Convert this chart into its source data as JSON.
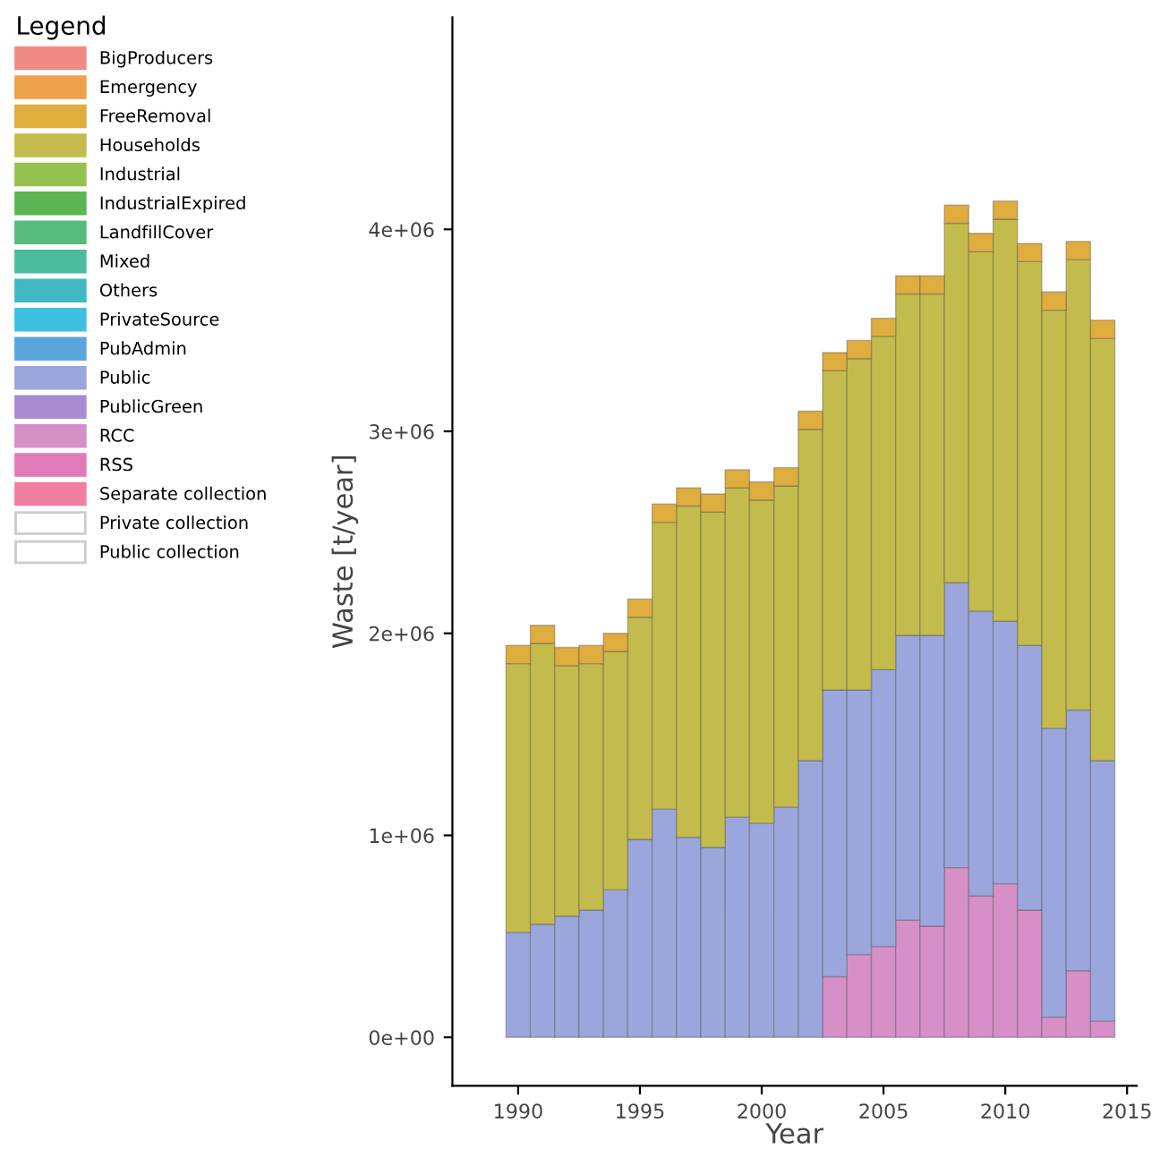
{
  "chart_data": {
    "type": "bar",
    "stacked": true,
    "xlabel": "Year",
    "ylabel": "Waste [t/year]",
    "legend_title": "Legend",
    "legend": "left",
    "grid": false,
    "x": [
      1990,
      1991,
      1992,
      1993,
      1994,
      1995,
      1996,
      1997,
      1998,
      1999,
      2000,
      2001,
      2002,
      2003,
      2004,
      2005,
      2006,
      2007,
      2008,
      2009,
      2010,
      2011,
      2012,
      2013,
      2014
    ],
    "xlim": [
      1987.3,
      2015.4
    ],
    "xticks": [
      1990,
      1995,
      2000,
      2005,
      2010,
      2015
    ],
    "ylim": [
      -240000,
      5050000
    ],
    "yticks": [
      {
        "value": 0,
        "label": "0e+00"
      },
      {
        "value": 1000000,
        "label": "1e+06"
      },
      {
        "value": 2000000,
        "label": "2e+06"
      },
      {
        "value": 3000000,
        "label": "3e+06"
      },
      {
        "value": 4000000,
        "label": "4e+06"
      }
    ],
    "series": [
      {
        "name": "RCC",
        "color": "#d78fc8",
        "values": [
          null,
          null,
          null,
          null,
          null,
          null,
          null,
          null,
          null,
          null,
          null,
          null,
          null,
          300000,
          410000,
          450000,
          580000,
          550000,
          840000,
          700000,
          760000,
          630000,
          100000,
          330000,
          80000
        ]
      },
      {
        "name": "Public",
        "color": "#9ba6dc",
        "values": [
          520000,
          560000,
          600000,
          630000,
          730000,
          980000,
          1130000,
          990000,
          940000,
          1090000,
          1060000,
          1140000,
          1370000,
          1420000,
          1310000,
          1370000,
          1410000,
          1440000,
          1410000,
          1410000,
          1300000,
          1310000,
          1430000,
          1290000,
          1290000
        ]
      },
      {
        "name": "Households",
        "color": "#c3bb4c",
        "values": [
          1330000,
          1390000,
          1240000,
          1220000,
          1180000,
          1100000,
          1420000,
          1640000,
          1660000,
          1630000,
          1600000,
          1590000,
          1640000,
          1580000,
          1640000,
          1650000,
          1690000,
          1690000,
          1780000,
          1780000,
          1990000,
          1900000,
          2070000,
          2230000,
          2090000
        ]
      },
      {
        "name": "FreeRemoval",
        "color": "#dfac3e",
        "values": [
          90000,
          90000,
          90000,
          90000,
          90000,
          90000,
          90000,
          90000,
          90000,
          90000,
          90000,
          90000,
          90000,
          90000,
          90000,
          90000,
          90000,
          90000,
          90000,
          90000,
          90000,
          90000,
          90000,
          90000,
          90000
        ]
      },
      {
        "name": "BigProducers",
        "color": "#f08a84",
        "values": [
          null,
          null,
          null,
          null,
          null,
          null,
          null,
          null,
          null,
          null,
          null,
          null,
          null,
          null,
          null,
          null,
          null,
          null,
          null,
          null,
          null,
          null,
          null,
          null,
          null
        ]
      },
      {
        "name": "Emergency",
        "color": "#eea04a",
        "values": [
          null,
          null,
          null,
          null,
          null,
          null,
          null,
          null,
          null,
          null,
          null,
          null,
          null,
          null,
          null,
          null,
          null,
          null,
          null,
          null,
          null,
          null,
          null,
          null,
          null
        ]
      },
      {
        "name": "Industrial",
        "color": "#95c24f",
        "values": [
          null,
          null,
          null,
          null,
          null,
          null,
          null,
          null,
          null,
          null,
          null,
          null,
          null,
          null,
          null,
          null,
          null,
          null,
          null,
          null,
          null,
          null,
          null,
          null,
          null
        ]
      },
      {
        "name": "IndustrialExpired",
        "color": "#5bb652",
        "values": [
          null,
          null,
          null,
          null,
          null,
          null,
          null,
          null,
          null,
          null,
          null,
          null,
          null,
          null,
          null,
          null,
          null,
          null,
          null,
          null,
          null,
          null,
          null,
          null,
          null
        ]
      },
      {
        "name": "LandfillCover",
        "color": "#56bb7c",
        "values": [
          null,
          null,
          null,
          null,
          null,
          null,
          null,
          null,
          null,
          null,
          null,
          null,
          null,
          null,
          null,
          null,
          null,
          null,
          null,
          null,
          null,
          null,
          null,
          null,
          null
        ]
      },
      {
        "name": "Mixed",
        "color": "#4dbb9d",
        "values": [
          null,
          null,
          null,
          null,
          null,
          null,
          null,
          null,
          null,
          null,
          null,
          null,
          null,
          null,
          null,
          null,
          null,
          null,
          null,
          null,
          null,
          null,
          null,
          null,
          null
        ]
      },
      {
        "name": "Others",
        "color": "#40b9c4",
        "values": [
          null,
          null,
          null,
          null,
          null,
          null,
          null,
          null,
          null,
          null,
          null,
          null,
          null,
          null,
          null,
          null,
          null,
          null,
          null,
          null,
          null,
          null,
          null,
          null,
          null
        ]
      },
      {
        "name": "PrivateSource",
        "color": "#3fc0e0",
        "values": [
          null,
          null,
          null,
          null,
          null,
          null,
          null,
          null,
          null,
          null,
          null,
          null,
          null,
          null,
          null,
          null,
          null,
          null,
          null,
          null,
          null,
          null,
          null,
          null,
          null
        ]
      },
      {
        "name": "PubAdmin",
        "color": "#5aa6dc",
        "values": [
          null,
          null,
          null,
          null,
          null,
          null,
          null,
          null,
          null,
          null,
          null,
          null,
          null,
          null,
          null,
          null,
          null,
          null,
          null,
          null,
          null,
          null,
          null,
          null,
          null
        ]
      },
      {
        "name": "PublicGreen",
        "color": "#a88bd0",
        "values": [
          null,
          null,
          null,
          null,
          null,
          null,
          null,
          null,
          null,
          null,
          null,
          null,
          null,
          null,
          null,
          null,
          null,
          null,
          null,
          null,
          null,
          null,
          null,
          null,
          null
        ]
      },
      {
        "name": "RSS",
        "color": "#e27ab8",
        "values": [
          null,
          null,
          null,
          null,
          null,
          null,
          null,
          null,
          null,
          null,
          null,
          null,
          null,
          null,
          null,
          null,
          null,
          null,
          null,
          null,
          null,
          null,
          null,
          null,
          null
        ]
      },
      {
        "name": "Separate collection",
        "color": "#ef7f9f",
        "values": [
          null,
          null,
          null,
          null,
          null,
          null,
          null,
          null,
          null,
          null,
          null,
          null,
          null,
          null,
          null,
          null,
          null,
          null,
          null,
          null,
          null,
          null,
          null,
          null,
          null
        ]
      },
      {
        "name": "Private collection",
        "color": "#ffffff",
        "values": [
          null,
          null,
          null,
          null,
          null,
          null,
          null,
          null,
          null,
          null,
          null,
          null,
          null,
          null,
          null,
          null,
          null,
          null,
          null,
          null,
          null,
          null,
          null,
          null,
          null
        ]
      },
      {
        "name": "Public collection",
        "color": "#ffffff",
        "values": [
          null,
          null,
          null,
          null,
          null,
          null,
          null,
          null,
          null,
          null,
          null,
          null,
          null,
          null,
          null,
          null,
          null,
          null,
          null,
          null,
          null,
          null,
          null,
          null,
          null
        ]
      }
    ]
  }
}
